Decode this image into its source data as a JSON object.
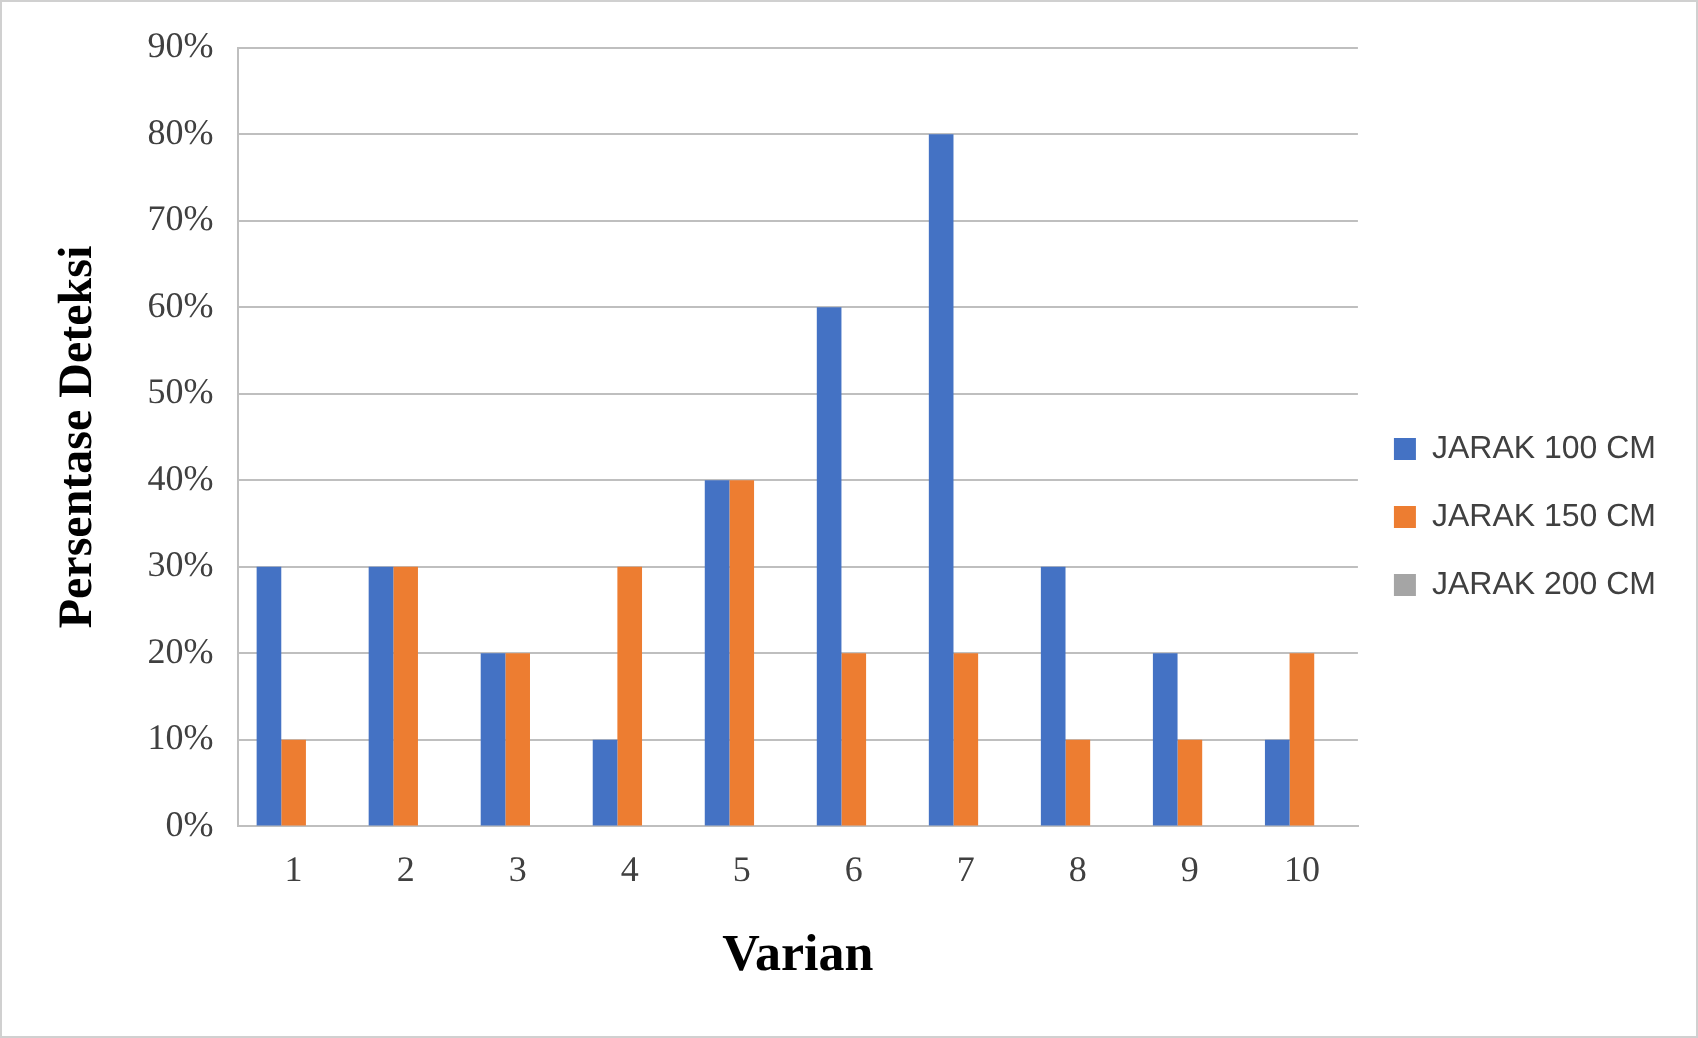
{
  "chart_data": {
    "type": "bar",
    "xlabel": "Varian",
    "ylabel": "Persentase Deteksi",
    "categories": [
      "1",
      "2",
      "3",
      "4",
      "5",
      "6",
      "7",
      "8",
      "9",
      "10"
    ],
    "series": [
      {
        "name": "JARAK 100 CM",
        "color": "#4472c4",
        "values": [
          30,
          30,
          20,
          10,
          40,
          60,
          80,
          30,
          20,
          10
        ]
      },
      {
        "name": "JARAK 150 CM",
        "color": "#ed7d31",
        "values": [
          10,
          30,
          20,
          30,
          40,
          20,
          20,
          10,
          10,
          20
        ]
      },
      {
        "name": "JARAK 200 CM",
        "color": "#a5a5a5",
        "values": [
          0,
          0,
          0,
          0,
          0,
          0,
          0,
          0,
          0,
          0
        ]
      }
    ],
    "ylim": [
      0,
      90
    ],
    "yticks": [
      {
        "value": 0,
        "label": "0%"
      },
      {
        "value": 10,
        "label": "10%"
      },
      {
        "value": 20,
        "label": "20%"
      },
      {
        "value": 30,
        "label": "30%"
      },
      {
        "value": 40,
        "label": "40%"
      },
      {
        "value": 50,
        "label": "50%"
      },
      {
        "value": 60,
        "label": "60%"
      },
      {
        "value": 70,
        "label": "70%"
      },
      {
        "value": 80,
        "label": "80%"
      },
      {
        "value": 90,
        "label": "90%"
      }
    ],
    "grid": "y",
    "legend": "right"
  }
}
